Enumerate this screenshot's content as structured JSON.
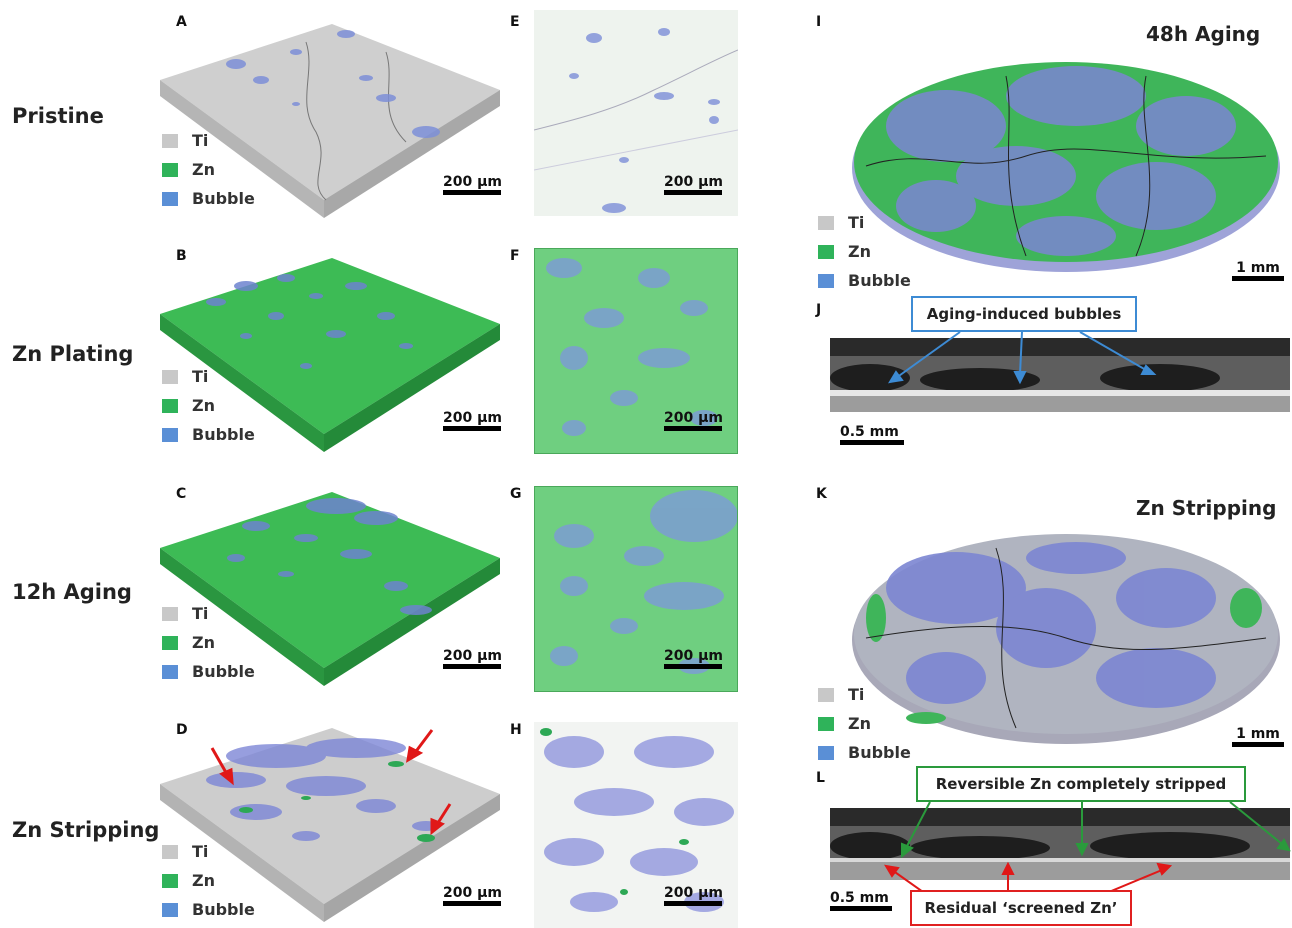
{
  "rows": [
    {
      "id": "pristine",
      "label": "Pristine"
    },
    {
      "id": "plating",
      "label": "Zn Plating"
    },
    {
      "id": "aging12",
      "label": "12h Aging"
    },
    {
      "id": "stripping",
      "label": "Zn Stripping"
    }
  ],
  "panel_letters": {
    "A": "A",
    "B": "B",
    "C": "C",
    "D": "D",
    "E": "E",
    "F": "F",
    "G": "G",
    "H": "H",
    "I": "I",
    "J": "J",
    "K": "K",
    "L": "L"
  },
  "legend": {
    "ti": "Ti",
    "zn": "Zn",
    "bubble": "Bubble"
  },
  "scale_bars": {
    "um200": "200 µm",
    "mm1": "1 mm",
    "mm05": "0.5 mm"
  },
  "titles": {
    "aging48": "48h Aging",
    "stripping": "Zn Stripping"
  },
  "callouts": {
    "aging_bubbles": "Aging-induced bubbles",
    "reversible": "Reversible Zn completely stripped",
    "residual": "Residual ‘screened Zn’"
  },
  "colors": {
    "ti": "#c8c8c8",
    "zn": "#2fb35a",
    "bubble": "#5a8fd6",
    "callout_blue": "#3d8bd4",
    "callout_green": "#2a9a3c",
    "callout_red": "#e02020",
    "arrow_red": "#e01818"
  }
}
